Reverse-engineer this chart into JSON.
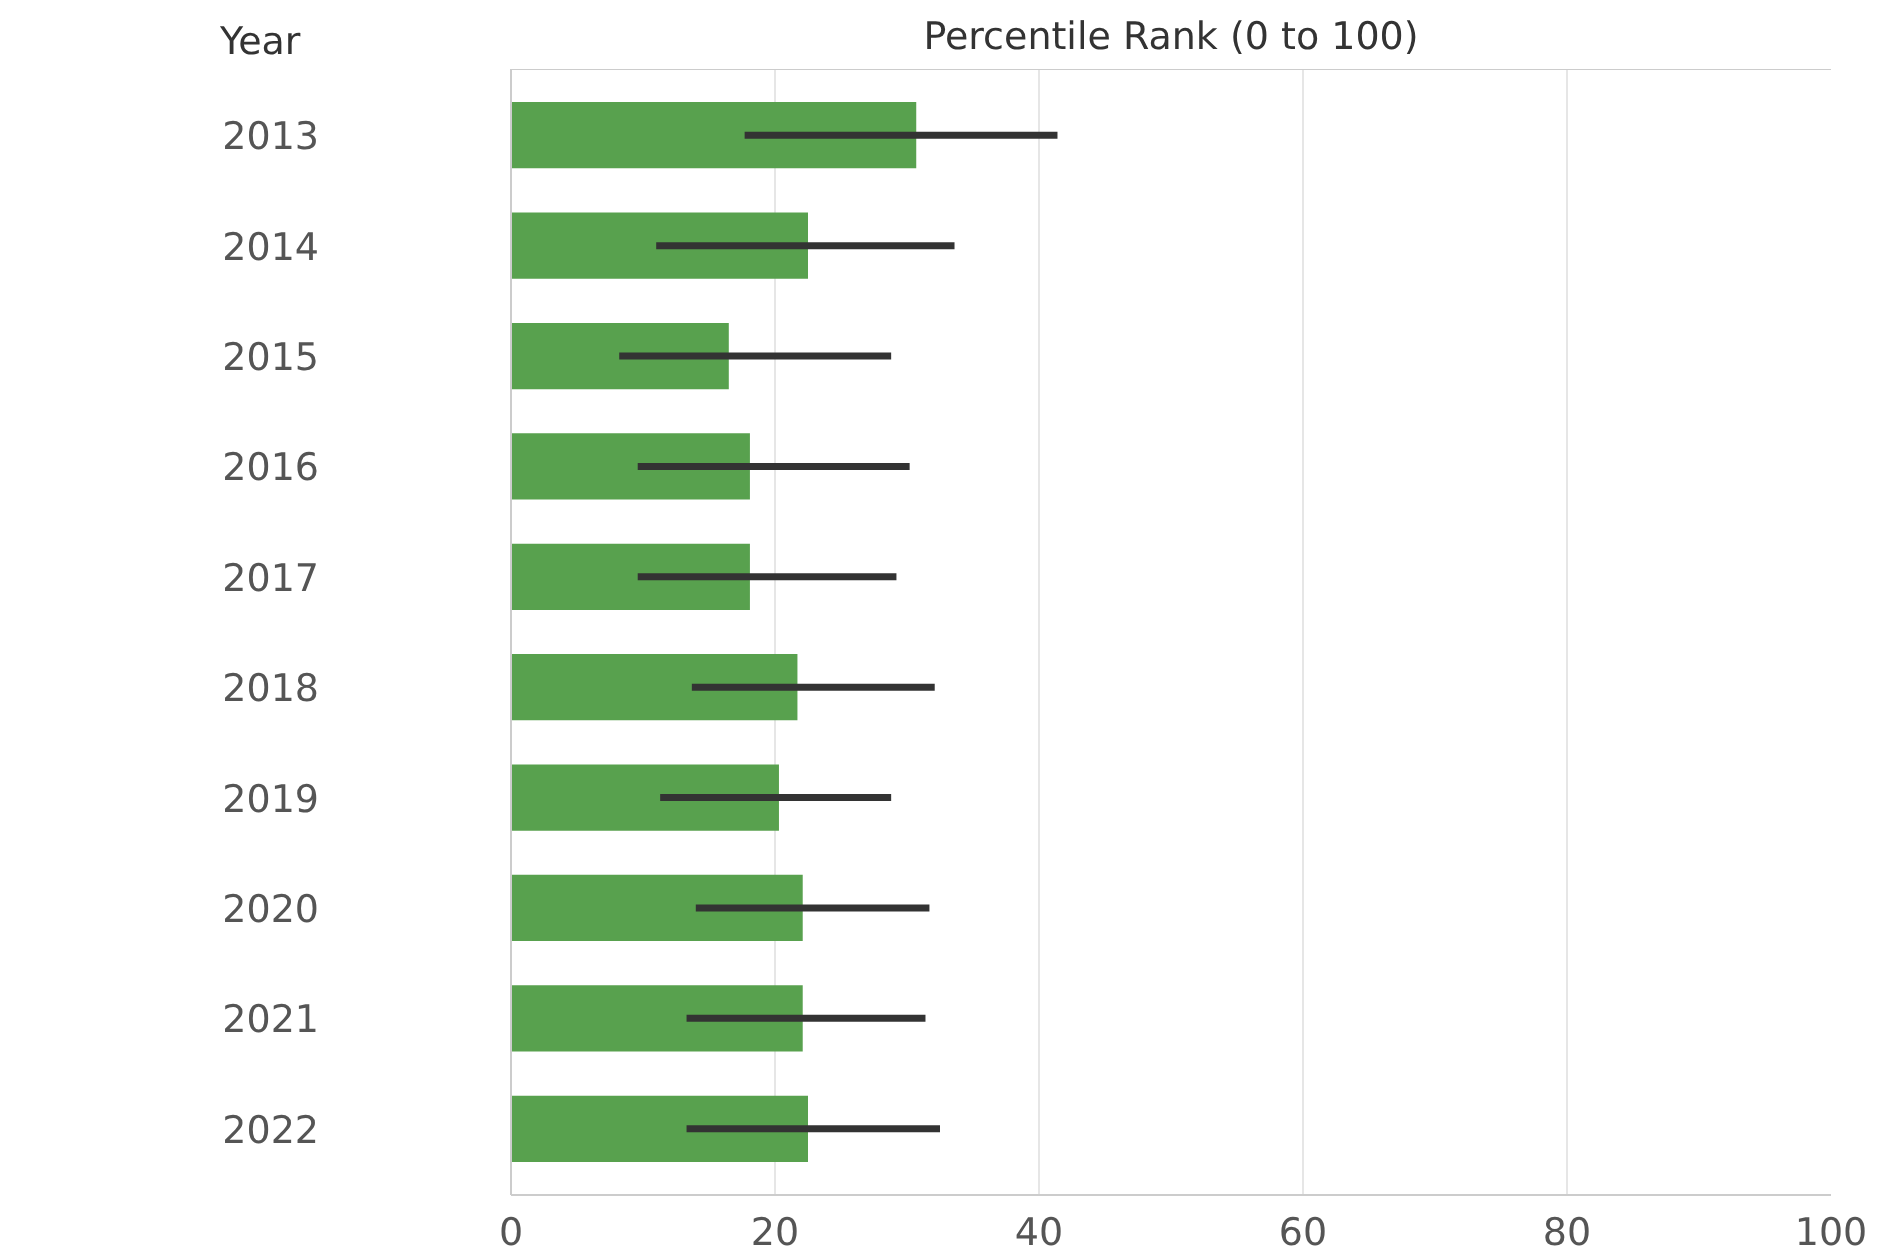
{
  "chart_data": {
    "type": "bar",
    "orientation": "horizontal",
    "title": "Percentile Rank (0 to 100)",
    "ylabel": "Year",
    "categories": [
      "2013",
      "2014",
      "2015",
      "2016",
      "2017",
      "2018",
      "2019",
      "2020",
      "2021",
      "2022"
    ],
    "values": [
      30.7,
      22.5,
      16.5,
      18.1,
      18.1,
      21.7,
      20.3,
      22.1,
      22.1,
      22.5
    ],
    "errors": [
      [
        17.7,
        41.4
      ],
      [
        11.0,
        33.6
      ],
      [
        8.2,
        28.8
      ],
      [
        9.6,
        30.2
      ],
      [
        9.6,
        29.2
      ],
      [
        13.7,
        32.1
      ],
      [
        11.3,
        28.8
      ],
      [
        14.0,
        31.7
      ],
      [
        13.3,
        31.4
      ],
      [
        13.3,
        32.5
      ]
    ],
    "color": "#58a14e",
    "xlim": [
      0,
      100
    ],
    "xticks": [
      0,
      20,
      40,
      60,
      80,
      100
    ],
    "grid": "x"
  }
}
